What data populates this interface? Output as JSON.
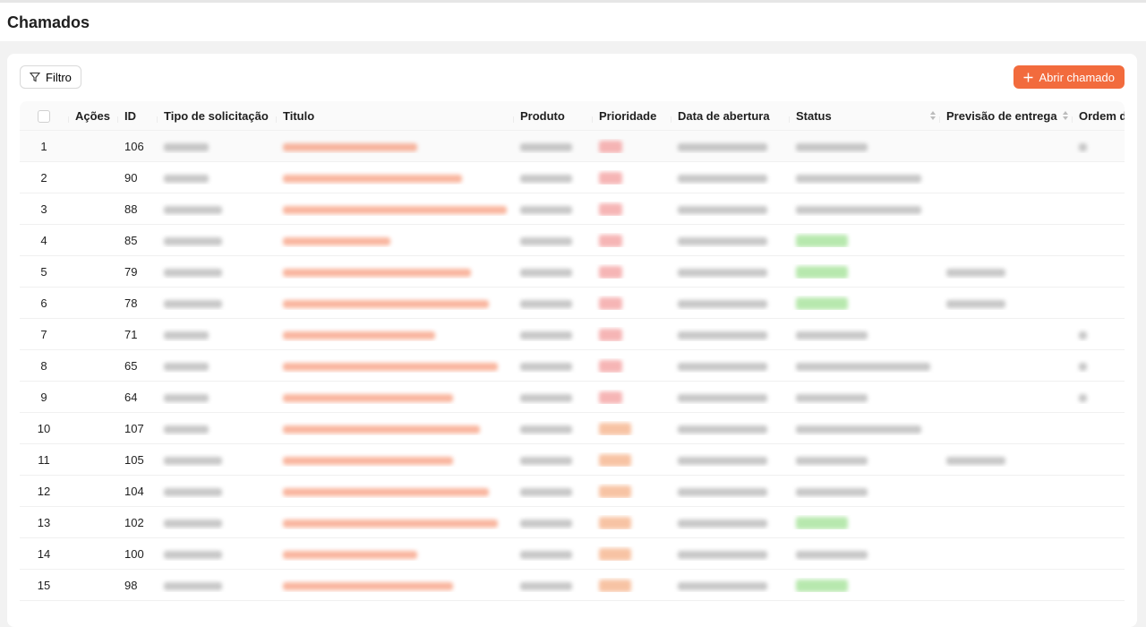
{
  "page": {
    "title": "Chamados"
  },
  "toolbar": {
    "filter_label": "Filtro",
    "new_label": "Abrir chamado",
    "accent": "#f26b3d"
  },
  "table": {
    "columns": [
      "Ações",
      "ID",
      "Tipo de solicitação",
      "Titulo",
      "Produto",
      "Prioridade",
      "Data de abertura",
      "Status",
      "Previsão de entrega",
      "Ordem d"
    ],
    "rows": [
      {
        "n": "1",
        "id": "106",
        "priority": "high",
        "status": "gray",
        "forecast": false,
        "order": true
      },
      {
        "n": "2",
        "id": "90",
        "priority": "high",
        "status": "gray",
        "forecast": false,
        "order": false
      },
      {
        "n": "3",
        "id": "88",
        "priority": "high",
        "status": "gray",
        "forecast": false,
        "order": false
      },
      {
        "n": "4",
        "id": "85",
        "priority": "high",
        "status": "green",
        "forecast": false,
        "order": false
      },
      {
        "n": "5",
        "id": "79",
        "priority": "high",
        "status": "green",
        "forecast": true,
        "order": false
      },
      {
        "n": "6",
        "id": "78",
        "priority": "high",
        "status": "green",
        "forecast": true,
        "order": false
      },
      {
        "n": "7",
        "id": "71",
        "priority": "high",
        "status": "gray",
        "forecast": false,
        "order": true
      },
      {
        "n": "8",
        "id": "65",
        "priority": "high",
        "status": "gray",
        "forecast": false,
        "order": true
      },
      {
        "n": "9",
        "id": "64",
        "priority": "high",
        "status": "gray",
        "forecast": false,
        "order": true
      },
      {
        "n": "10",
        "id": "107",
        "priority": "medium",
        "status": "gray",
        "forecast": false,
        "order": false
      },
      {
        "n": "11",
        "id": "105",
        "priority": "medium",
        "status": "gray",
        "forecast": true,
        "order": false
      },
      {
        "n": "12",
        "id": "104",
        "priority": "medium",
        "status": "gray",
        "forecast": false,
        "order": false
      },
      {
        "n": "13",
        "id": "102",
        "priority": "medium",
        "status": "green",
        "forecast": false,
        "order": false
      },
      {
        "n": "14",
        "id": "100",
        "priority": "medium",
        "status": "gray",
        "forecast": false,
        "order": false
      },
      {
        "n": "15",
        "id": "98",
        "priority": "medium",
        "status": "green",
        "forecast": false,
        "order": false
      }
    ]
  }
}
